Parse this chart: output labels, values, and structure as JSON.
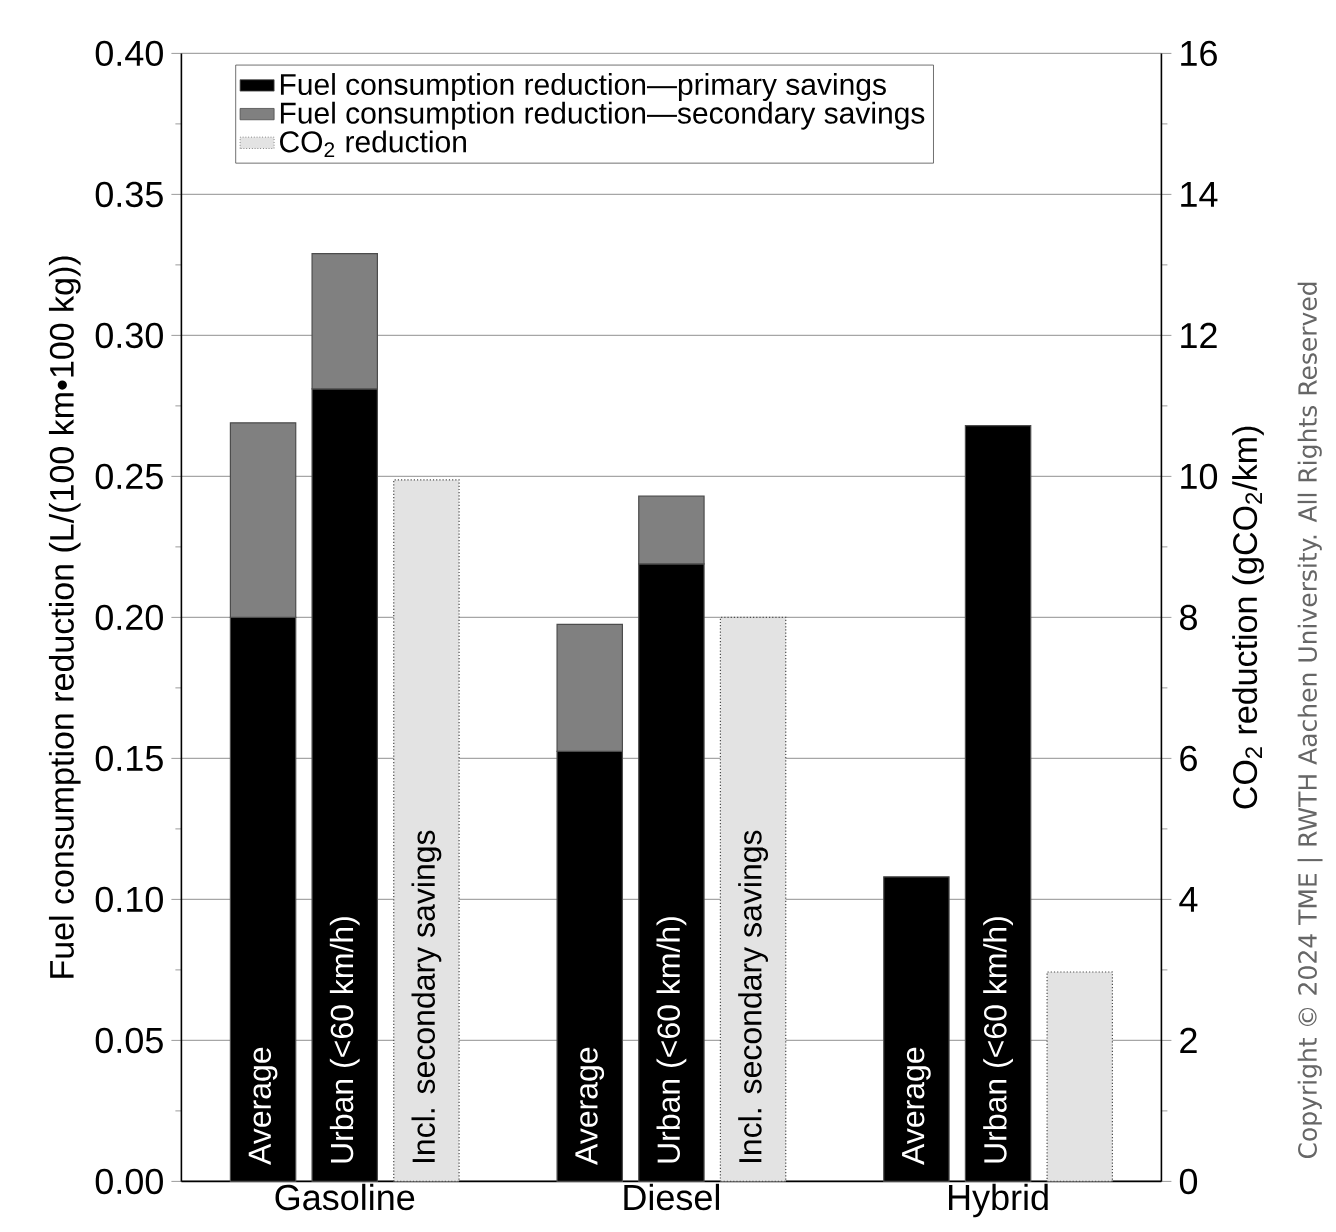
{
  "chart_data": {
    "type": "bar",
    "stacked": true,
    "categories": [
      "Average",
      "Urban (<60 km/h)",
      "Incl. secondary savings",
      null,
      "Average",
      "Urban (<60 km/h)",
      "Incl. secondary savings",
      null,
      "Average",
      "Urban (<60 km/h)",
      null
    ],
    "series": [
      {
        "name": "Fuel consumption reduction—primary savings",
        "color": "#000000",
        "values": [
          0.2,
          0.281,
          null,
          null,
          0.1525,
          0.219,
          null,
          null,
          0.108,
          0.268,
          null
        ]
      },
      {
        "name": "Fuel consumption reduction—secondary savings",
        "color": "#808080",
        "values": [
          0.069,
          0.048,
          null,
          null,
          0.045,
          0.024,
          null,
          null,
          null,
          null,
          null
        ]
      },
      {
        "name": "CO$_{2}$ reduction",
        "color": "#e3e3e3",
        "axis": "y2",
        "values": [
          null,
          null,
          9.95,
          null,
          null,
          null,
          8.0,
          null,
          null,
          null,
          2.97
        ]
      }
    ],
    "ylabel": "Fuel consumption reduction (L/(100 km•100 kg))",
    "y2label": "CO$_{2}$ reduction (gCO$_{2}$/km)",
    "ylim": [
      0,
      0.4
    ],
    "yticks": [
      {
        "value": 0,
        "label": "0.00"
      },
      {
        "value": 0.05,
        "label": "0.05"
      },
      {
        "value": 0.1,
        "label": "0.10"
      },
      {
        "value": 0.15,
        "label": "0.15"
      },
      {
        "value": 0.2,
        "label": "0.20"
      },
      {
        "value": 0.25,
        "label": "0.25"
      },
      {
        "value": 0.3,
        "label": "0.30"
      },
      {
        "value": 0.35,
        "label": "0.35"
      },
      {
        "value": 0.4,
        "label": "0.40"
      }
    ],
    "y2lim": [
      0,
      16
    ],
    "y2ticks": [
      0,
      2,
      4,
      6,
      8,
      10,
      12,
      14,
      16
    ],
    "grid": "y",
    "legend": "top",
    "annotations": [
      "Gasoline",
      "Diesel",
      "Hybrid",
      "Copyright © 2024 TME | RWTH Aachen University. All Rights Reserved"
    ]
  }
}
